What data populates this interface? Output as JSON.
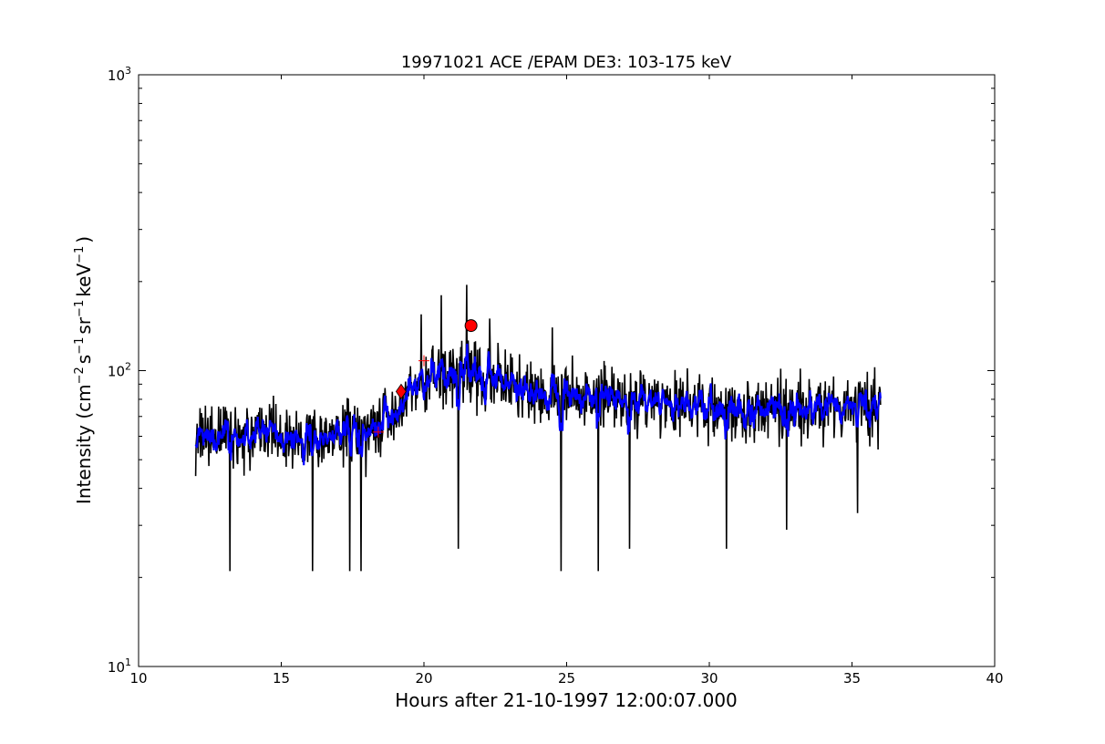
{
  "chart_data": {
    "type": "line",
    "title": "19971021 ACE /EPAM DE3: 103-175 keV",
    "xlabel": "Hours after 21-10-1997 12:00:07.000",
    "ylabel": {
      "prefix": "Intensity (cm",
      "exp1": "−2",
      "s": "s",
      "exp2": "−1",
      "sr": "sr",
      "exp3": "−1",
      "kev": "keV",
      "exp4": "−1",
      "suffix": ")"
    },
    "xlim": [
      10,
      40
    ],
    "ylim": [
      10,
      1000
    ],
    "yscale": "log",
    "grid": false,
    "x_ticks": [
      10,
      15,
      20,
      25,
      30,
      35,
      40
    ],
    "x_tick_labels": [
      "10",
      "15",
      "20",
      "25",
      "30",
      "35",
      "40"
    ],
    "y_major_ticks": [
      10,
      100,
      1000
    ],
    "y_tick_labels": [
      {
        "base": "10",
        "exp": "1"
      },
      {
        "base": "10",
        "exp": "2"
      },
      {
        "base": "10",
        "exp": "3"
      }
    ],
    "series": [
      {
        "color": "#000000",
        "x_start": 12.0,
        "x_end": 36.0,
        "envelope": [
          {
            "x": 12.0,
            "y": 60
          },
          {
            "x": 14.0,
            "y": 62
          },
          {
            "x": 16.0,
            "y": 60
          },
          {
            "x": 18.0,
            "y": 62
          },
          {
            "x": 18.8,
            "y": 68
          },
          {
            "x": 19.5,
            "y": 85
          },
          {
            "x": 20.5,
            "y": 95
          },
          {
            "x": 21.5,
            "y": 98
          },
          {
            "x": 22.5,
            "y": 92
          },
          {
            "x": 24.0,
            "y": 85
          },
          {
            "x": 26.0,
            "y": 82
          },
          {
            "x": 28.0,
            "y": 78
          },
          {
            "x": 30.0,
            "y": 75
          },
          {
            "x": 32.0,
            "y": 73
          },
          {
            "x": 34.0,
            "y": 74
          },
          {
            "x": 36.0,
            "y": 74
          }
        ],
        "spikes": [
          {
            "x": 21.5,
            "y": 195
          },
          {
            "x": 20.6,
            "y": 180
          },
          {
            "x": 19.9,
            "y": 155
          },
          {
            "x": 22.3,
            "y": 150
          },
          {
            "x": 24.5,
            "y": 140
          },
          {
            "x": 13.2,
            "y": 21
          },
          {
            "x": 16.1,
            "y": 21
          },
          {
            "x": 17.4,
            "y": 21
          },
          {
            "x": 17.8,
            "y": 21
          },
          {
            "x": 24.8,
            "y": 21
          },
          {
            "x": 26.1,
            "y": 21
          },
          {
            "x": 21.2,
            "y": 25
          },
          {
            "x": 27.2,
            "y": 25
          },
          {
            "x": 30.6,
            "y": 25
          },
          {
            "x": 32.7,
            "y": 29
          },
          {
            "x": 35.2,
            "y": 33
          }
        ]
      },
      {
        "color": "#0000ff",
        "x_start": 12.0,
        "x_end": 36.0,
        "smoothing": "running average"
      }
    ],
    "markers": [
      {
        "shape": "plus",
        "x": 18.4,
        "y": 62,
        "color": "#ff0000"
      },
      {
        "shape": "plus",
        "x": 20.0,
        "y": 108,
        "color": "#ff0000"
      },
      {
        "shape": "diamond",
        "x": 19.2,
        "y": 85,
        "color": "#ff0000"
      },
      {
        "shape": "circle",
        "x": 21.65,
        "y": 142,
        "color": "#ff0000"
      }
    ]
  }
}
